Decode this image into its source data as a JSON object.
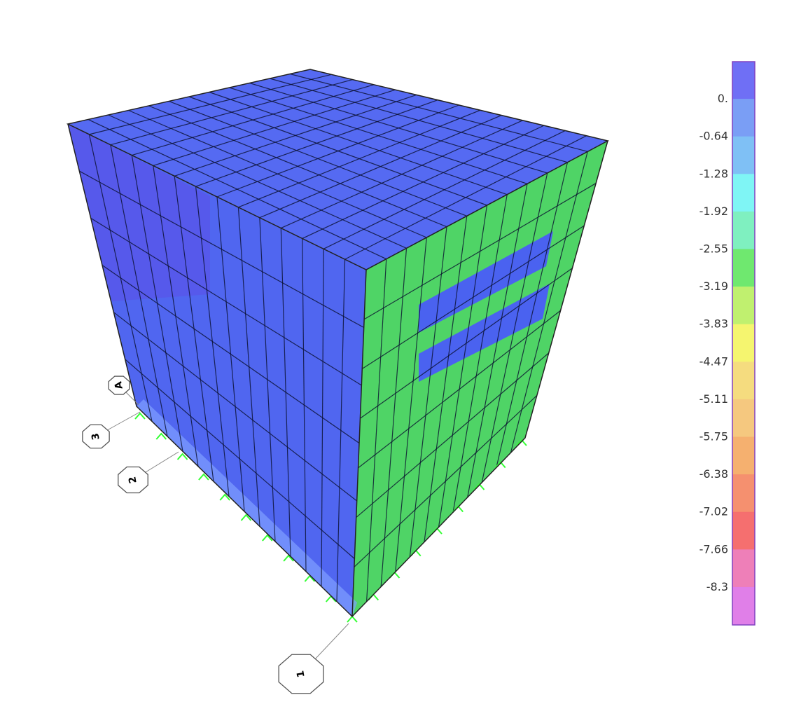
{
  "legend": {
    "labels": [
      "0.",
      "-0.64",
      "-1.28",
      "-1.92",
      "-2.55",
      "-3.19",
      "-3.83",
      "-4.47",
      "-5.11",
      "-5.75",
      "-6.38",
      "-7.02",
      "-7.66",
      "-8.3"
    ],
    "colors": [
      "#6f6ff5",
      "#7a9ef5",
      "#7fc0f5",
      "#7ff5f5",
      "#7ff0c0",
      "#6fe86f",
      "#c0f06f",
      "#f5f56f",
      "#f5dc7f",
      "#f5c87f",
      "#f5b06f",
      "#f5906f",
      "#f56f6f",
      "#ee7fb8",
      "#e07fe8"
    ]
  },
  "grid_bubbles": [
    "A",
    "3",
    "2",
    "1"
  ]
}
